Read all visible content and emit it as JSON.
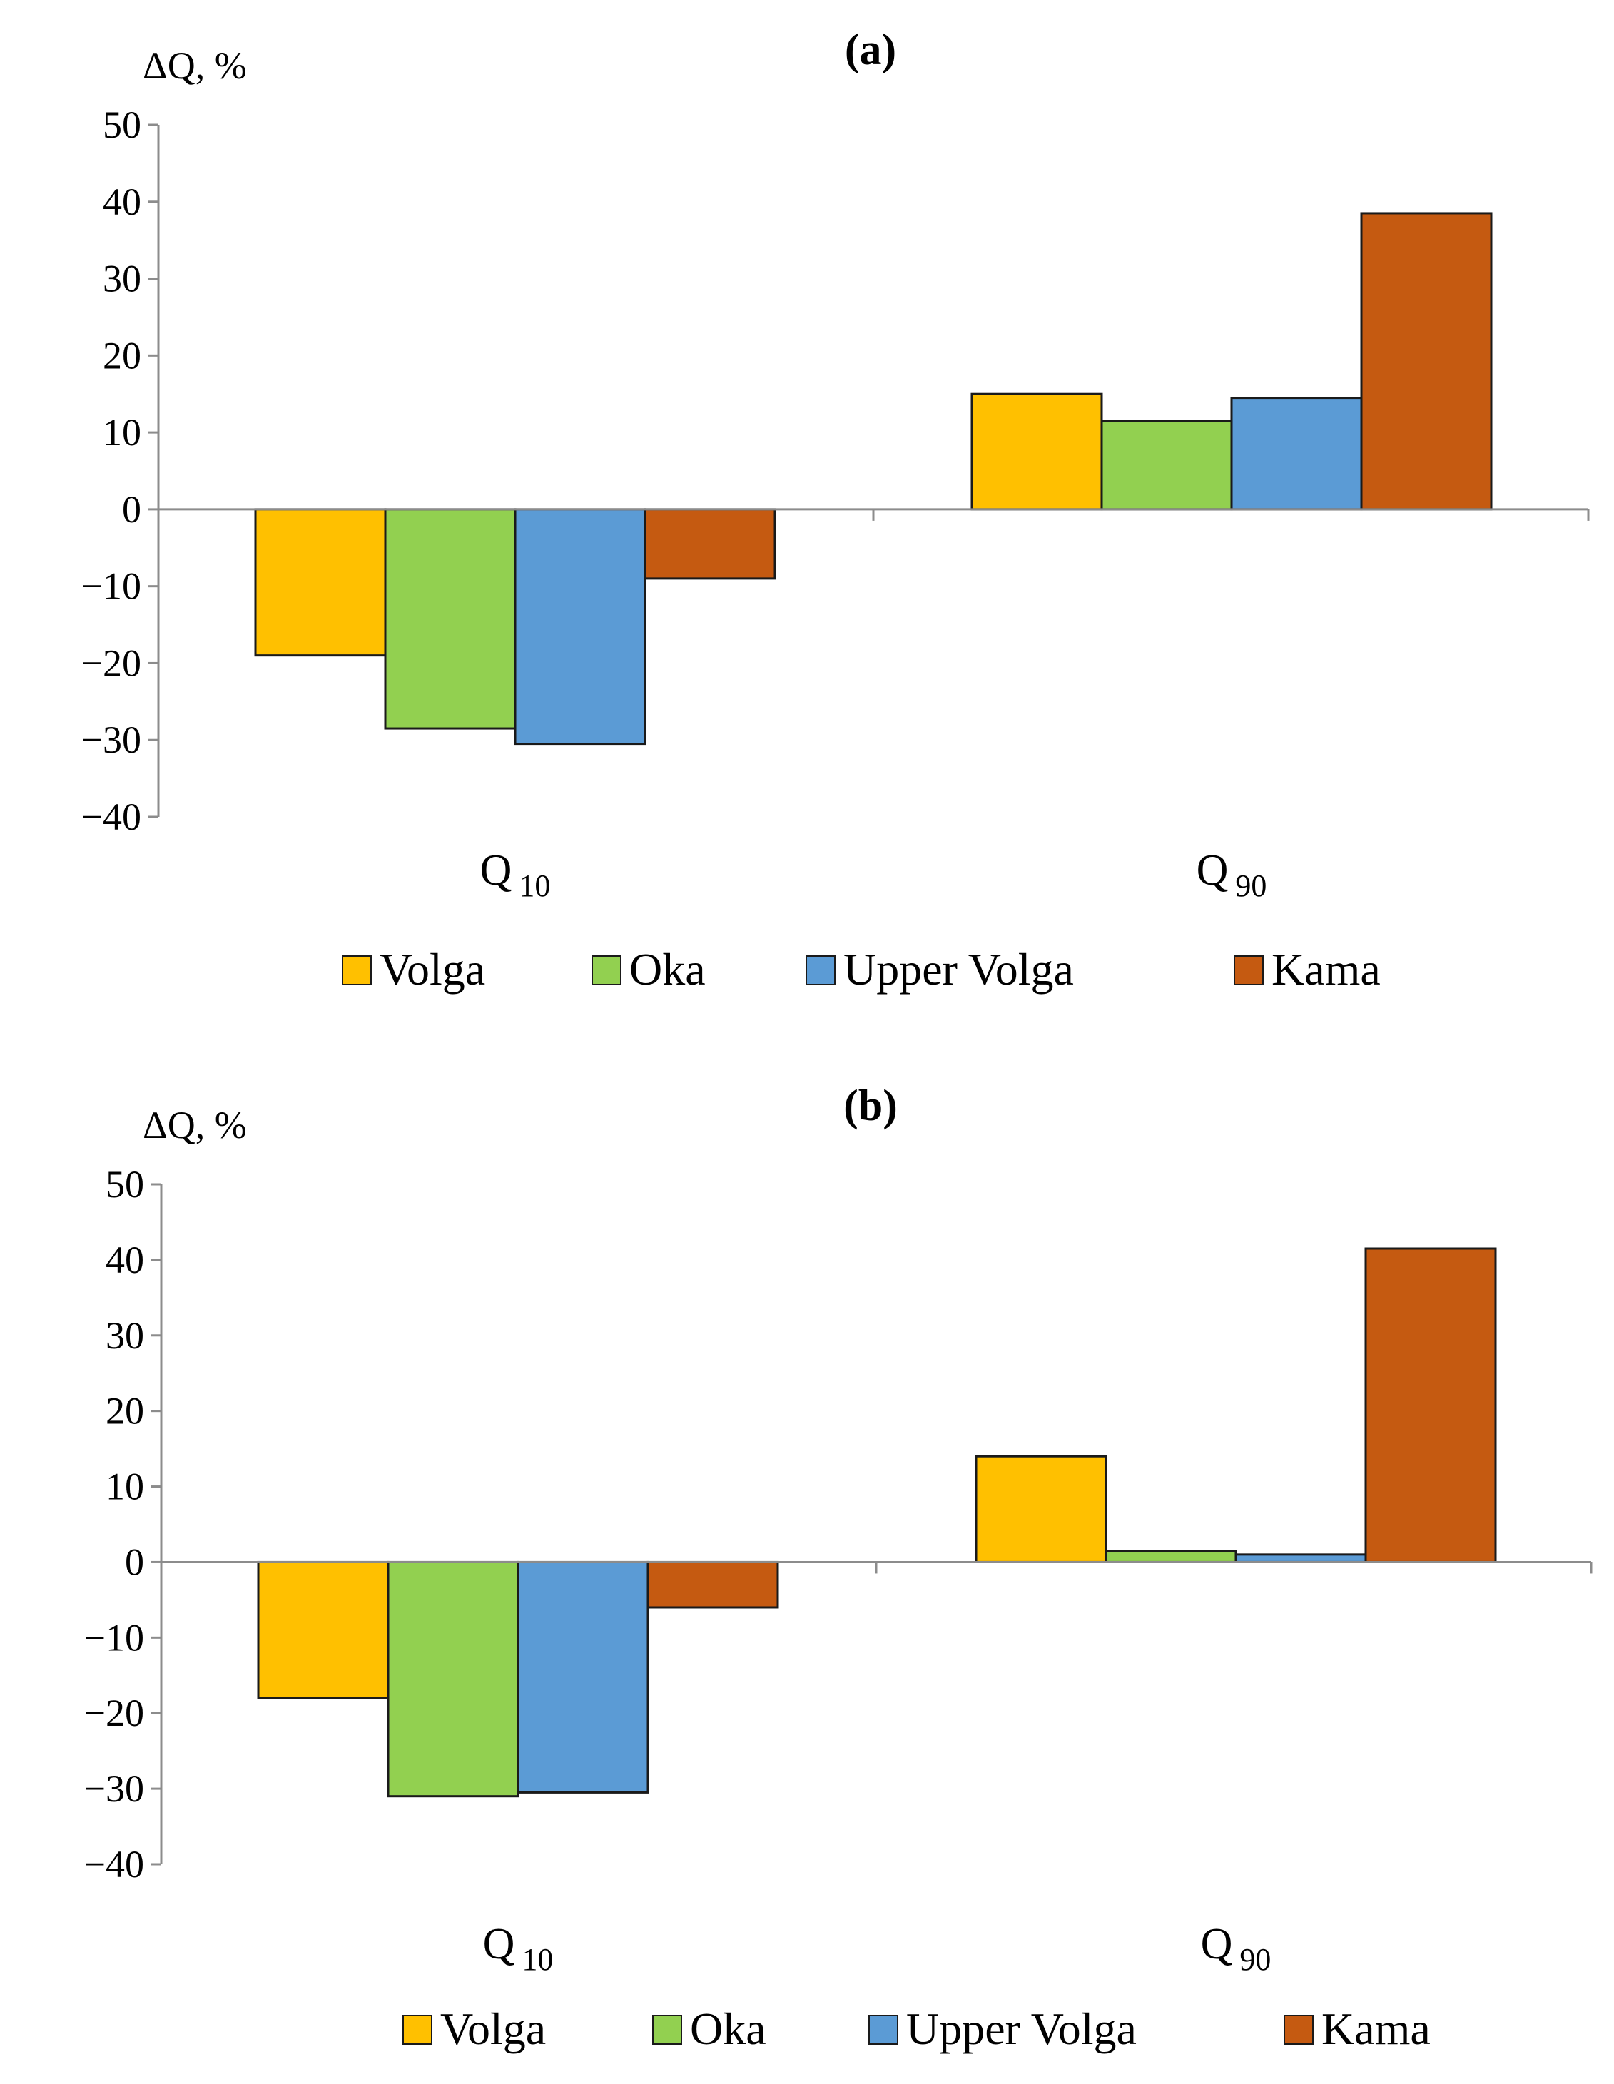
{
  "colors": {
    "Volga": "#FFC000",
    "Oka": "#92D050",
    "Upper Volga": "#5B9BD5",
    "Kama": "#C55A11"
  },
  "chart_data": [
    {
      "type": "bar",
      "title": "(a)",
      "ylabel": "ΔQ, %",
      "xlabel": "",
      "ylim": [
        -40,
        50
      ],
      "yticks": [
        50,
        40,
        30,
        20,
        10,
        0,
        -10,
        -20,
        -30,
        -40
      ],
      "categories": [
        {
          "letter": "Q",
          "sub": "10"
        },
        {
          "letter": "Q",
          "sub": "90"
        }
      ],
      "series": [
        {
          "name": "Volga",
          "values": [
            -19,
            15
          ]
        },
        {
          "name": "Oka",
          "values": [
            -28.5,
            11.5
          ]
        },
        {
          "name": "Upper Volga",
          "values": [
            -30.5,
            14.5
          ]
        },
        {
          "name": "Kama",
          "values": [
            -9,
            38.5
          ]
        }
      ],
      "legend": [
        "Volga",
        "Oka",
        "Upper Volga",
        "Kama"
      ],
      "legend_position": "bottom",
      "grid": false
    },
    {
      "type": "bar",
      "title": "(b)",
      "ylabel": "ΔQ, %",
      "xlabel": "",
      "ylim": [
        -40,
        50
      ],
      "yticks": [
        50,
        40,
        30,
        20,
        10,
        0,
        -10,
        -20,
        -30,
        -40
      ],
      "categories": [
        {
          "letter": "Q",
          "sub": "10"
        },
        {
          "letter": "Q",
          "sub": "90"
        }
      ],
      "series": [
        {
          "name": "Volga",
          "values": [
            -18,
            14
          ]
        },
        {
          "name": "Oka",
          "values": [
            -31,
            1.5
          ]
        },
        {
          "name": "Upper Volga",
          "values": [
            -30.5,
            1
          ]
        },
        {
          "name": "Kama",
          "values": [
            -6,
            41.5
          ]
        }
      ],
      "legend": [
        "Volga",
        "Oka",
        "Upper Volga",
        "Kama"
      ],
      "legend_position": "bottom",
      "grid": false
    }
  ]
}
